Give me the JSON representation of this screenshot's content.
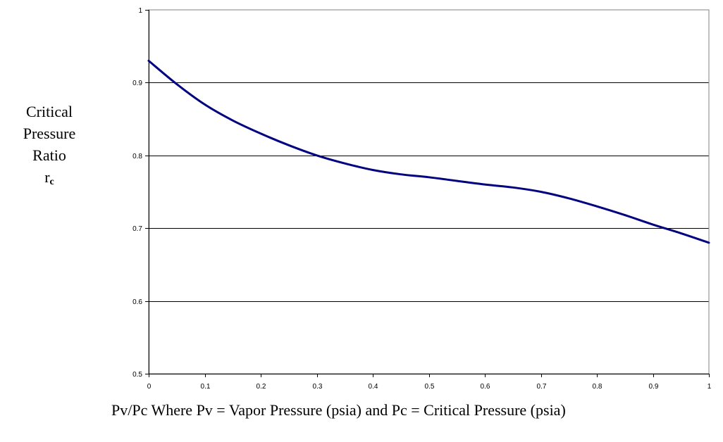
{
  "chart_data": {
    "type": "line",
    "title": "",
    "ylabel_lines": [
      "Critical",
      "Pressure",
      "Ratio"
    ],
    "ylabel_symbol": "r",
    "ylabel_symbol_sub": "c",
    "xlabel": "Pv/Pc Where Pv = Vapor Pressure (psia) and Pc = Critical Pressure (psia)",
    "xlim": [
      0,
      1
    ],
    "ylim": [
      0.5,
      1
    ],
    "xticks": [
      "0",
      "0.1",
      "0.2",
      "0.3",
      "0.4",
      "0.5",
      "0.6",
      "0.7",
      "0.8",
      "0.9",
      "1"
    ],
    "yticks": [
      "0.5",
      "0.6",
      "0.7",
      "0.8",
      "0.9",
      "1"
    ],
    "grid": "horizontal",
    "legend": "none",
    "series": [
      {
        "color": "#000080",
        "x": [
          0,
          0.05,
          0.1,
          0.15,
          0.2,
          0.25,
          0.3,
          0.35,
          0.4,
          0.45,
          0.5,
          0.55,
          0.6,
          0.65,
          0.7,
          0.75,
          0.8,
          0.85,
          0.9,
          0.95,
          1.0
        ],
        "y": [
          0.93,
          0.898,
          0.87,
          0.848,
          0.83,
          0.814,
          0.8,
          0.789,
          0.78,
          0.774,
          0.77,
          0.765,
          0.76,
          0.756,
          0.75,
          0.741,
          0.73,
          0.718,
          0.705,
          0.693,
          0.68
        ]
      }
    ]
  }
}
